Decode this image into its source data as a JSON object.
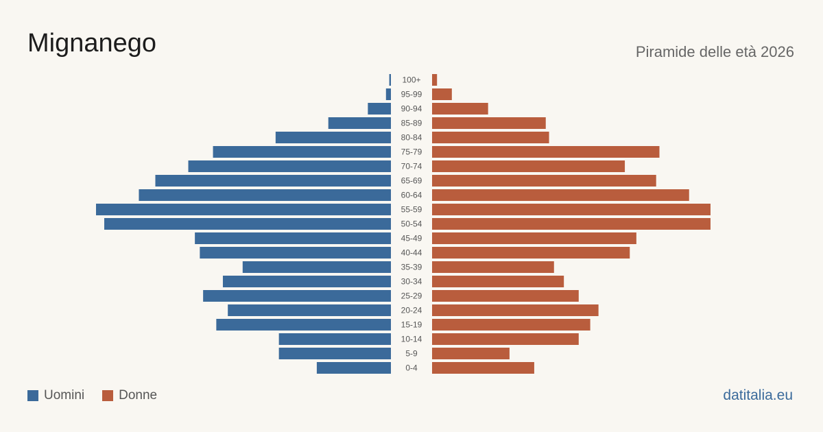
{
  "header": {
    "title": "Mignanego",
    "subtitle": "Piramide delle età 2026"
  },
  "legend": [
    {
      "label": "Uomini",
      "color": "#3b6a9a"
    },
    {
      "label": "Donne",
      "color": "#b95d3d"
    }
  ],
  "footer": {
    "source": "datitalia.eu"
  },
  "chart_data": {
    "type": "bar",
    "orientation": "horizontal-pyramid",
    "categories": [
      "100+",
      "95-99",
      "90-94",
      "85-89",
      "80-84",
      "75-79",
      "70-74",
      "65-69",
      "60-64",
      "55-59",
      "50-54",
      "45-49",
      "40-44",
      "35-39",
      "30-34",
      "25-29",
      "20-24",
      "15-19",
      "10-14",
      "5-9",
      "0-4"
    ],
    "series": [
      {
        "name": "Uomini",
        "color": "#3b6a9a",
        "values": [
          1,
          3,
          14,
          38,
          70,
          108,
          123,
          143,
          153,
          179,
          174,
          119,
          116,
          90,
          102,
          114,
          99,
          106,
          68,
          68,
          45
        ]
      },
      {
        "name": "Donne",
        "color": "#b95d3d",
        "values": [
          3,
          12,
          34,
          69,
          71,
          138,
          117,
          136,
          156,
          169,
          169,
          124,
          120,
          74,
          80,
          89,
          101,
          96,
          89,
          47,
          62
        ]
      }
    ],
    "xlim": [
      0,
      179
    ],
    "grid": false,
    "legend_position": "bottom-left"
  }
}
